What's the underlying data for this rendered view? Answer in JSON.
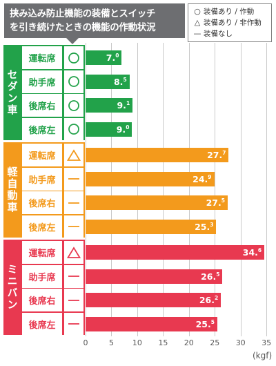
{
  "title": {
    "line1": "挟み込み防止機能の装備とスイッチ",
    "line2": "を引き続けたときの機能の作動状況"
  },
  "legend": [
    {
      "symbol": "○",
      "text": "装備あり / 作動"
    },
    {
      "symbol": "△",
      "text": "装備あり / 非作動"
    },
    {
      "symbol": "—",
      "text": "装備なし"
    }
  ],
  "chart_data": {
    "type": "bar",
    "orientation": "horizontal",
    "xlim": [
      0,
      35
    ],
    "ticks": [
      "0",
      "5",
      "10",
      "15",
      "20",
      "25",
      "30",
      "35"
    ],
    "unit": "(kgf)",
    "colors": {
      "sedan": "#22a24a",
      "kei": "#f39a1c",
      "minivan": "#e83950"
    },
    "groups": [
      {
        "key": "sedan",
        "label": "セダン車",
        "rows": [
          {
            "seat": "運転席",
            "mark": "○",
            "value": 7.0,
            "int": "7.",
            "dec": "0"
          },
          {
            "seat": "助手席",
            "mark": "○",
            "value": 8.5,
            "int": "8.",
            "dec": "5"
          },
          {
            "seat": "後席右",
            "mark": "○",
            "value": 9.1,
            "int": "9.",
            "dec": "1"
          },
          {
            "seat": "後席左",
            "mark": "○",
            "value": 9.0,
            "int": "9.",
            "dec": "0"
          }
        ]
      },
      {
        "key": "kei",
        "label": "軽自動車",
        "rows": [
          {
            "seat": "運転席",
            "mark": "△",
            "value": 27.7,
            "int": "27.",
            "dec": "7"
          },
          {
            "seat": "助手席",
            "mark": "—",
            "value": 24.9,
            "int": "24.",
            "dec": "9"
          },
          {
            "seat": "後席右",
            "mark": "—",
            "value": 27.5,
            "int": "27.",
            "dec": "5"
          },
          {
            "seat": "後席左",
            "mark": "—",
            "value": 25.3,
            "int": "25.",
            "dec": "3"
          }
        ]
      },
      {
        "key": "minivan",
        "label": "ミニバン",
        "rows": [
          {
            "seat": "運転席",
            "mark": "△",
            "value": 34.6,
            "int": "34.",
            "dec": "6"
          },
          {
            "seat": "助手席",
            "mark": "—",
            "value": 26.5,
            "int": "26.",
            "dec": "5"
          },
          {
            "seat": "後席右",
            "mark": "—",
            "value": 26.2,
            "int": "26.",
            "dec": "2"
          },
          {
            "seat": "後席左",
            "mark": "—",
            "value": 25.5,
            "int": "25.",
            "dec": "5"
          }
        ]
      }
    ]
  }
}
